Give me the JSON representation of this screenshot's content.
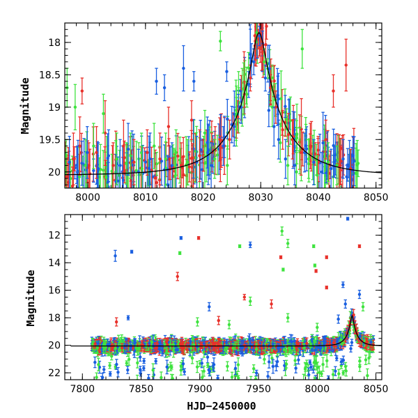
{
  "colors": {
    "red": "#e8302a",
    "green": "#3fe33f",
    "blue": "#1a5fe0",
    "model": "#000000"
  },
  "chart_data": [
    {
      "type": "scatter",
      "title": "",
      "xlabel": "",
      "ylabel": "Magnitude",
      "xlim": [
        7996,
        8051
      ],
      "ylim": [
        20.25,
        17.7
      ],
      "y_inverted": true,
      "xticks": [
        8000,
        8010,
        8020,
        8030,
        8040,
        8050
      ],
      "yticks": [
        18,
        18.5,
        19,
        19.5,
        20
      ],
      "model_curve": {
        "type": "line",
        "peak_x": 8029.7,
        "peak_mag": 17.85,
        "baseline_mag": 20.05
      },
      "series": [
        {
          "color": "red",
          "points": [
            {
              "x": 7997.5,
              "y": 19.8,
              "err": 0.4
            },
            {
              "x": 7998.6,
              "y": 19.6,
              "err": 0.45
            },
            {
              "x": 7999.0,
              "y": 18.75,
              "err": 0.2
            },
            {
              "x": 8000.2,
              "y": 19.9,
              "err": 0.35
            },
            {
              "x": 8001.5,
              "y": 19.7,
              "err": 0.4
            },
            {
              "x": 8003.0,
              "y": 19.4,
              "err": 0.5
            },
            {
              "x": 8004.4,
              "y": 19.9,
              "err": 0.35
            },
            {
              "x": 8006.2,
              "y": 19.6,
              "err": 0.4
            },
            {
              "x": 8008.0,
              "y": 19.85,
              "err": 0.35
            },
            {
              "x": 8010.3,
              "y": 19.7,
              "err": 0.35
            },
            {
              "x": 8012.5,
              "y": 19.8,
              "err": 0.4
            },
            {
              "x": 8014.0,
              "y": 19.3,
              "err": 0.3
            },
            {
              "x": 8016.2,
              "y": 19.9,
              "err": 0.35
            },
            {
              "x": 8018.0,
              "y": 19.2,
              "err": 0.3
            },
            {
              "x": 8019.4,
              "y": 19.75,
              "err": 0.4
            },
            {
              "x": 8021.5,
              "y": 19.7,
              "err": 0.3
            },
            {
              "x": 8023.0,
              "y": 19.8,
              "err": 0.35
            },
            {
              "x": 8024.6,
              "y": 19.5,
              "err": 0.3
            },
            {
              "x": 8026.0,
              "y": 19.15,
              "err": 0.25
            },
            {
              "x": 8027.2,
              "y": 18.8,
              "err": 0.2
            },
            {
              "x": 8028.2,
              "y": 18.55,
              "err": 0.2
            },
            {
              "x": 8029.0,
              "y": 18.05,
              "err": 0.15
            },
            {
              "x": 8029.6,
              "y": 17.95,
              "err": 0.15
            },
            {
              "x": 8030.3,
              "y": 18.15,
              "err": 0.15
            },
            {
              "x": 8031.0,
              "y": 17.75,
              "err": 0.2
            },
            {
              "x": 8031.7,
              "y": 18.7,
              "err": 0.2
            },
            {
              "x": 8032.6,
              "y": 19.0,
              "err": 0.25
            },
            {
              "x": 8033.8,
              "y": 19.35,
              "err": 0.3
            },
            {
              "x": 8035.5,
              "y": 19.5,
              "err": 0.3
            },
            {
              "x": 8037.0,
              "y": 19.7,
              "err": 0.35
            },
            {
              "x": 8038.6,
              "y": 19.6,
              "err": 0.35
            },
            {
              "x": 8040.0,
              "y": 19.85,
              "err": 0.3
            },
            {
              "x": 8041.3,
              "y": 19.5,
              "err": 0.3
            },
            {
              "x": 8042.6,
              "y": 18.75,
              "err": 0.25
            },
            {
              "x": 8043.8,
              "y": 19.9,
              "err": 0.3
            },
            {
              "x": 8044.8,
              "y": 18.35,
              "err": 0.4
            },
            {
              "x": 8045.6,
              "y": 19.95,
              "err": 0.3
            }
          ]
        },
        {
          "color": "green",
          "points": [
            {
              "x": 7996.4,
              "y": 18.7,
              "err": 0.3
            },
            {
              "x": 7997.8,
              "y": 19.0,
              "err": 0.35
            },
            {
              "x": 7999.6,
              "y": 19.9,
              "err": 0.4
            },
            {
              "x": 8001.0,
              "y": 19.6,
              "err": 0.35
            },
            {
              "x": 8002.7,
              "y": 19.1,
              "err": 0.3
            },
            {
              "x": 8005.0,
              "y": 19.8,
              "err": 0.4
            },
            {
              "x": 8007.4,
              "y": 19.75,
              "err": 0.35
            },
            {
              "x": 8009.4,
              "y": 19.95,
              "err": 0.35
            },
            {
              "x": 8011.5,
              "y": 19.6,
              "err": 0.35
            },
            {
              "x": 8013.5,
              "y": 19.8,
              "err": 0.4
            },
            {
              "x": 8015.3,
              "y": 19.7,
              "err": 0.35
            },
            {
              "x": 8017.3,
              "y": 19.85,
              "err": 0.35
            },
            {
              "x": 8020.3,
              "y": 19.4,
              "err": 0.35
            },
            {
              "x": 8022.0,
              "y": 19.8,
              "err": 0.3
            },
            {
              "x": 8023.0,
              "y": 17.98,
              "err": 0.15
            },
            {
              "x": 8024.2,
              "y": 19.9,
              "err": 0.3
            },
            {
              "x": 8025.8,
              "y": 19.1,
              "err": 0.25
            },
            {
              "x": 8027.6,
              "y": 18.8,
              "err": 0.2
            },
            {
              "x": 8029.3,
              "y": 17.85,
              "err": 0.15
            },
            {
              "x": 8030.6,
              "y": 18.3,
              "err": 0.2
            },
            {
              "x": 8032.0,
              "y": 19.0,
              "err": 0.3
            },
            {
              "x": 8033.4,
              "y": 19.55,
              "err": 0.3
            },
            {
              "x": 8034.7,
              "y": 19.9,
              "err": 0.3
            },
            {
              "x": 8036.2,
              "y": 20.0,
              "err": 0.3
            },
            {
              "x": 8037.2,
              "y": 18.1,
              "err": 0.3
            },
            {
              "x": 8038.3,
              "y": 19.8,
              "err": 0.3
            },
            {
              "x": 8039.8,
              "y": 20.05,
              "err": 0.3
            },
            {
              "x": 8041.7,
              "y": 19.85,
              "err": 0.3
            },
            {
              "x": 8043.2,
              "y": 19.9,
              "err": 0.3
            }
          ]
        },
        {
          "color": "blue",
          "points": [
            {
              "x": 7996.8,
              "y": 19.85,
              "err": 0.4
            },
            {
              "x": 7998.2,
              "y": 20.0,
              "err": 0.4
            },
            {
              "x": 7999.9,
              "y": 19.7,
              "err": 0.4
            },
            {
              "x": 8001.8,
              "y": 19.95,
              "err": 0.4
            },
            {
              "x": 8003.6,
              "y": 19.75,
              "err": 0.4
            },
            {
              "x": 8005.6,
              "y": 19.9,
              "err": 0.4
            },
            {
              "x": 8007.0,
              "y": 19.65,
              "err": 0.4
            },
            {
              "x": 8008.8,
              "y": 20.0,
              "err": 0.35
            },
            {
              "x": 8010.8,
              "y": 19.8,
              "err": 0.4
            },
            {
              "x": 8011.9,
              "y": 18.6,
              "err": 0.2
            },
            {
              "x": 8013.3,
              "y": 18.7,
              "err": 0.2
            },
            {
              "x": 8014.6,
              "y": 19.9,
              "err": 0.35
            },
            {
              "x": 8016.6,
              "y": 18.4,
              "err": 0.35
            },
            {
              "x": 8018.4,
              "y": 18.6,
              "err": 0.15
            },
            {
              "x": 8018.9,
              "y": 19.85,
              "err": 0.4
            },
            {
              "x": 8020.8,
              "y": 19.7,
              "err": 0.35
            },
            {
              "x": 8021.4,
              "y": 19.9,
              "err": 0.35
            },
            {
              "x": 8023.5,
              "y": 19.6,
              "err": 0.3
            },
            {
              "x": 8024.1,
              "y": 18.45,
              "err": 0.15
            },
            {
              "x": 8025.4,
              "y": 19.3,
              "err": 0.3
            },
            {
              "x": 8026.6,
              "y": 19.0,
              "err": 0.25
            },
            {
              "x": 8027.9,
              "y": 18.65,
              "err": 0.2
            },
            {
              "x": 8028.8,
              "y": 18.3,
              "err": 0.2
            },
            {
              "x": 8029.8,
              "y": 17.9,
              "err": 0.15
            },
            {
              "x": 8030.8,
              "y": 18.55,
              "err": 0.2
            },
            {
              "x": 8031.4,
              "y": 19.05,
              "err": 0.25
            },
            {
              "x": 8032.3,
              "y": 19.3,
              "err": 0.3
            },
            {
              "x": 8033.1,
              "y": 19.5,
              "err": 0.3
            },
            {
              "x": 8034.3,
              "y": 19.8,
              "err": 0.3
            },
            {
              "x": 8035.9,
              "y": 19.9,
              "err": 0.3
            },
            {
              "x": 8037.6,
              "y": 19.7,
              "err": 0.3
            },
            {
              "x": 8039.2,
              "y": 19.85,
              "err": 0.35
            },
            {
              "x": 8040.6,
              "y": 20.0,
              "err": 0.3
            },
            {
              "x": 8042.2,
              "y": 19.95,
              "err": 0.3
            },
            {
              "x": 8044.3,
              "y": 19.8,
              "err": 0.3
            },
            {
              "x": 8046.0,
              "y": 19.75,
              "err": 0.3
            }
          ]
        }
      ]
    },
    {
      "type": "scatter",
      "title": "",
      "xlabel": "HJD−2450000",
      "ylabel": "Magnitude",
      "xlim": [
        7785,
        8055
      ],
      "ylim": [
        22.5,
        10.5
      ],
      "y_inverted": true,
      "xticks": [
        7800,
        7850,
        7900,
        7950,
        8000,
        8050
      ],
      "yticks": [
        12,
        14,
        16,
        18,
        20,
        22
      ],
      "model_curve": {
        "type": "line",
        "peak_x": 8029.7,
        "peak_mag": 17.85,
        "baseline_mag": 20.05
      },
      "bulk": {
        "x_start": 7808,
        "x_end": 8048,
        "center_mag": 20.0,
        "spread_mag": 0.6
      },
      "series": [
        {
          "color": "blue",
          "points": [
            {
              "x": 7828,
              "y": 13.5,
              "err": 0.4
            },
            {
              "x": 7842,
              "y": 13.2,
              "err": 0.1
            },
            {
              "x": 7884,
              "y": 12.2,
              "err": 0.1
            },
            {
              "x": 7943,
              "y": 12.7,
              "err": 0.2
            },
            {
              "x": 8026,
              "y": 10.8,
              "err": 0.1
            },
            {
              "x": 8022,
              "y": 15.6,
              "err": 0.2
            },
            {
              "x": 7839,
              "y": 18.0,
              "err": 0.15
            },
            {
              "x": 7908,
              "y": 17.2,
              "err": 0.3
            },
            {
              "x": 8018,
              "y": 18.1,
              "err": 0.3
            },
            {
              "x": 8030,
              "y": 17.9,
              "err": 0.3
            },
            {
              "x": 8036,
              "y": 16.3,
              "err": 0.3
            },
            {
              "x": 8024,
              "y": 17.0,
              "err": 0.3
            }
          ]
        },
        {
          "color": "red",
          "points": [
            {
              "x": 7899,
              "y": 12.2,
              "err": 0.1
            },
            {
              "x": 7969,
              "y": 13.6,
              "err": 0.1
            },
            {
              "x": 7999,
              "y": 14.6,
              "err": 0.1
            },
            {
              "x": 8008,
              "y": 13.6,
              "err": 0.1
            },
            {
              "x": 8008,
              "y": 15.8,
              "err": 0.1
            },
            {
              "x": 8036,
              "y": 12.8,
              "err": 0.1
            },
            {
              "x": 7881,
              "y": 15.0,
              "err": 0.3
            },
            {
              "x": 7938,
              "y": 16.5,
              "err": 0.2
            },
            {
              "x": 7916,
              "y": 18.2,
              "err": 0.3
            },
            {
              "x": 7829,
              "y": 18.3,
              "err": 0.3
            },
            {
              "x": 7961,
              "y": 17.0,
              "err": 0.3
            },
            {
              "x": 8031,
              "y": 17.8,
              "err": 0.4
            }
          ]
        },
        {
          "color": "green",
          "points": [
            {
              "x": 7883,
              "y": 13.3,
              "err": 0.1
            },
            {
              "x": 7934,
              "y": 12.8,
              "err": 0.1
            },
            {
              "x": 7970,
              "y": 11.7,
              "err": 0.3
            },
            {
              "x": 7975,
              "y": 12.6,
              "err": 0.3
            },
            {
              "x": 7997,
              "y": 12.8,
              "err": 0.1
            },
            {
              "x": 7998,
              "y": 14.2,
              "err": 0.1
            },
            {
              "x": 7971,
              "y": 14.5,
              "err": 0.1
            },
            {
              "x": 7943,
              "y": 16.8,
              "err": 0.3
            },
            {
              "x": 7975,
              "y": 18.0,
              "err": 0.3
            },
            {
              "x": 8039,
              "y": 17.2,
              "err": 0.3
            },
            {
              "x": 7898,
              "y": 18.3,
              "err": 0.3
            },
            {
              "x": 7925,
              "y": 18.5,
              "err": 0.3
            },
            {
              "x": 8000,
              "y": 18.7,
              "err": 0.3
            }
          ]
        }
      ]
    }
  ]
}
